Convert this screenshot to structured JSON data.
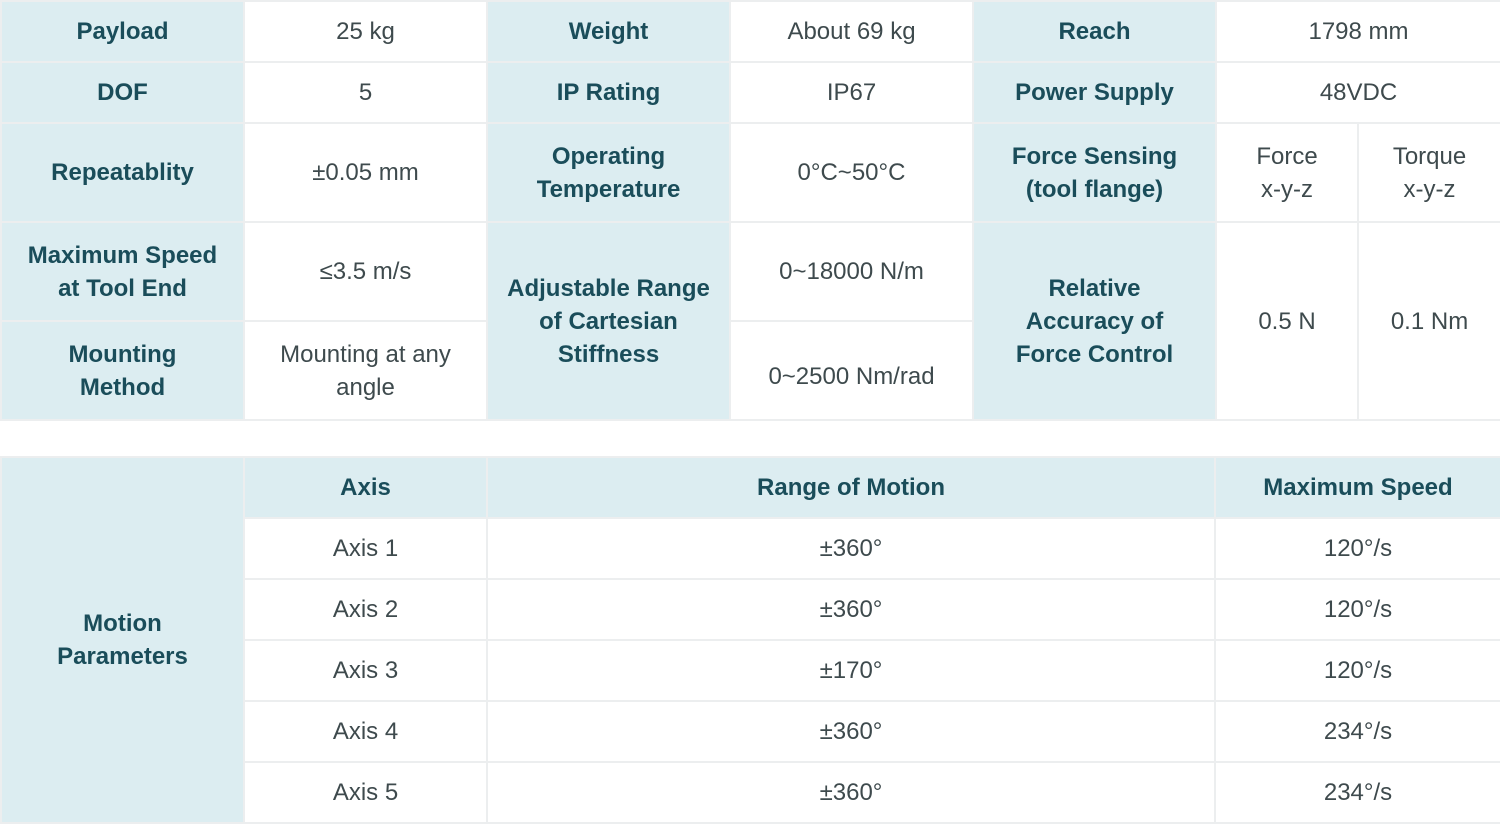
{
  "specs": {
    "payload_label": "Payload",
    "payload_value": "25 kg",
    "weight_label": "Weight",
    "weight_value": "About 69 kg",
    "reach_label": "Reach",
    "reach_value": "1798 mm",
    "dof_label": "DOF",
    "dof_value": "5",
    "ip_label": "IP Rating",
    "ip_value": "IP67",
    "power_label": "Power Supply",
    "power_value": "48VDC",
    "repeat_label": "Repeatablity",
    "repeat_value": "±0.05 mm",
    "optemp_label": [
      "Operating",
      "Temperature"
    ],
    "optemp_value": "0°C~50°C",
    "force_label": [
      "Force Sensing",
      "(tool flange)"
    ],
    "force_col": [
      "Force",
      "x-y-z"
    ],
    "torque_col": [
      "Torque",
      "x-y-z"
    ],
    "maxspeed_label": [
      "Maximum Speed",
      "at Tool End"
    ],
    "maxspeed_value": "≤3.5 m/s",
    "stiffness_label": [
      "Adjustable Range",
      "of Cartesian",
      "Stiffness"
    ],
    "stiffness_value_1": "0~18000 N/m",
    "stiffness_value_2": "0~2500 Nm/rad",
    "accuracy_label": [
      "Relative",
      "Accuracy of",
      "Force Control"
    ],
    "accuracy_force": "0.5 N",
    "accuracy_torque": "0.1 Nm",
    "mounting_label": [
      "Mounting",
      "Method"
    ],
    "mounting_value": [
      "Mounting at any",
      "angle"
    ]
  },
  "motion": {
    "title": [
      "Motion",
      "Parameters"
    ],
    "headers": [
      "Axis",
      "Range of Motion",
      "Maximum Speed"
    ],
    "rows": [
      {
        "axis": "Axis 1",
        "range": "±360°",
        "speed": "120°/s"
      },
      {
        "axis": "Axis 2",
        "range": "±360°",
        "speed": "120°/s"
      },
      {
        "axis": "Axis 3",
        "range": "±170°",
        "speed": "120°/s"
      },
      {
        "axis": "Axis 4",
        "range": "±360°",
        "speed": "234°/s"
      },
      {
        "axis": "Axis 5",
        "range": "±360°",
        "speed": "234°/s"
      }
    ]
  }
}
